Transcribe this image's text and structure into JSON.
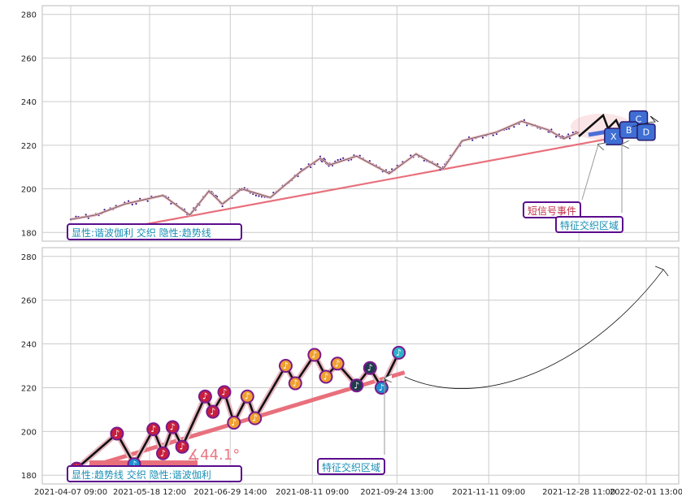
{
  "chart_data": [
    {
      "type": "line",
      "panel": "top",
      "ylim": [
        176,
        284
      ],
      "y_ticks": [
        180,
        200,
        220,
        240,
        260,
        280
      ],
      "grid": true,
      "series": [
        {
          "color": "#e8a0a8",
          "x": [
            "2021-04-07",
            "2021-04-20",
            "2021-05-05",
            "2021-05-25",
            "2021-06-08",
            "2021-06-18",
            "2021-06-25",
            "2021-07-05",
            "2021-07-20",
            "2021-08-05",
            "2021-08-15",
            "2021-08-20",
            "2021-09-03",
            "2021-09-20",
            "2021-10-04",
            "2021-10-18",
            "2021-10-28",
            "2021-11-15",
            "2021-11-28",
            "2021-12-12",
            "2021-12-20",
            "2021-12-28"
          ],
          "values": [
            186,
            188,
            193,
            197,
            188,
            199,
            193,
            200,
            196,
            208,
            214,
            211,
            215,
            207,
            216,
            209,
            222,
            226,
            231,
            227,
            223,
            226
          ]
        }
      ],
      "annotations": [
        {
          "text": "显性:谐波伽利 交织 隐性:趋势线",
          "at_x": "2021-04-07",
          "at_y": 180
        },
        {
          "text": "短信号事件",
          "at_x": "2022-01-15",
          "at_y": 188
        },
        {
          "text": "特征交织区域",
          "at_x": "2022-01-25",
          "at_y": 182
        }
      ],
      "markers": [
        {
          "label": "X",
          "x": "2022-01-15",
          "y": 224
        },
        {
          "label": "C",
          "x": "2022-01-28",
          "y": 232
        },
        {
          "label": "B",
          "x": "2022-01-23",
          "y": 227
        },
        {
          "label": "D",
          "x": "2022-02-01",
          "y": 226
        }
      ],
      "trend_line": {
        "x": [
          "2021-05-05",
          "2022-01-25"
        ],
        "y": [
          182,
          225
        ]
      }
    },
    {
      "type": "line",
      "panel": "bottom",
      "ylim": [
        176,
        284
      ],
      "y_ticks": [
        180,
        200,
        220,
        240,
        260,
        280
      ],
      "grid": true,
      "x_ticks": [
        "2021-04-07 09:00",
        "2021-05-18 12:00",
        "2021-06-29 14:00",
        "2021-08-11 09:00",
        "2021-09-24 13:00",
        "2021-11-11 09:00",
        "2021-12-28 11:00",
        "2022-02-01 13:00"
      ],
      "series": [
        {
          "color": "#111111",
          "x": [
            "2021-04-10",
            "2021-05-01",
            "2021-05-10",
            "2021-05-20",
            "2021-05-25",
            "2021-05-30",
            "2021-06-04",
            "2021-06-16",
            "2021-06-20",
            "2021-06-26",
            "2021-07-01",
            "2021-07-08",
            "2021-07-12",
            "2021-07-28",
            "2021-08-02",
            "2021-08-12",
            "2021-08-18",
            "2021-08-24",
            "2021-09-03",
            "2021-09-10",
            "2021-09-16",
            "2021-09-25"
          ],
          "values": [
            183,
            199,
            185,
            201,
            190,
            202,
            193,
            216,
            209,
            218,
            204,
            216,
            206,
            230,
            222,
            235,
            225,
            231,
            221,
            229,
            220,
            236
          ]
        }
      ],
      "markers": [
        {
          "x": "2021-04-10",
          "y": 183,
          "color": "#c81e3c"
        },
        {
          "x": "2021-05-01",
          "y": 199,
          "color": "#c81e3c"
        },
        {
          "x": "2021-05-10",
          "y": 185,
          "color": "#1a8fd0"
        },
        {
          "x": "2021-05-20",
          "y": 201,
          "color": "#c81e3c"
        },
        {
          "x": "2021-05-25",
          "y": 190,
          "color": "#c81e3c"
        },
        {
          "x": "2021-05-30",
          "y": 202,
          "color": "#c81e3c"
        },
        {
          "x": "2021-06-04",
          "y": 193,
          "color": "#c81e3c"
        },
        {
          "x": "2021-06-16",
          "y": 216,
          "color": "#c81e3c"
        },
        {
          "x": "2021-06-20",
          "y": 209,
          "color": "#c81e3c"
        },
        {
          "x": "2021-06-26",
          "y": 218,
          "color": "#c81e3c"
        },
        {
          "x": "2021-07-01",
          "y": 204,
          "color": "#f0a030"
        },
        {
          "x": "2021-07-08",
          "y": 216,
          "color": "#f0a030"
        },
        {
          "x": "2021-07-12",
          "y": 206,
          "color": "#f0a030"
        },
        {
          "x": "2021-07-28",
          "y": 230,
          "color": "#f0a030"
        },
        {
          "x": "2021-08-02",
          "y": 222,
          "color": "#f0a030"
        },
        {
          "x": "2021-08-12",
          "y": 235,
          "color": "#f0a030"
        },
        {
          "x": "2021-08-18",
          "y": 225,
          "color": "#f0a030"
        },
        {
          "x": "2021-08-24",
          "y": 231,
          "color": "#f0a030"
        },
        {
          "x": "2021-09-03",
          "y": 221,
          "color": "#1f3b4d"
        },
        {
          "x": "2021-09-10",
          "y": 229,
          "color": "#1f3b4d"
        },
        {
          "x": "2021-09-16",
          "y": 220,
          "color": "#1a8fd0"
        },
        {
          "x": "2021-09-25",
          "y": 236,
          "color": "#2ab3c9"
        }
      ],
      "trend_line": {
        "x": [
          "2021-04-10",
          "2021-09-28"
        ],
        "y": [
          182,
          227
        ]
      },
      "angle_label": "∡44.1°",
      "annotations": [
        {
          "text": "显性:趋势线 交织 隐性:谐波伽利",
          "at_x": "2021-04-07",
          "at_y": 180
        },
        {
          "text": "特征交织区域",
          "at_x": "2021-09-12",
          "at_y": 182
        }
      ],
      "projection_curve": {
        "x": [
          "2021-09-28",
          "2021-11-10",
          "2022-01-05",
          "2022-02-10"
        ],
        "y": [
          225,
          223,
          236,
          274
        ]
      }
    }
  ]
}
